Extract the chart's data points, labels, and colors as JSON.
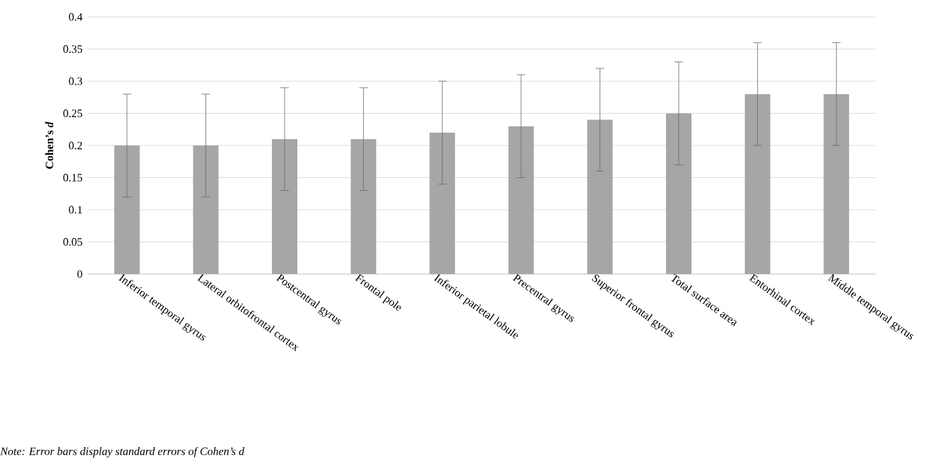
{
  "chart_data": {
    "type": "bar",
    "ylabel": "Cohen’s *d*",
    "categories": [
      "Inferior temporal gyrus",
      "Lateral orbitofrontal cortex",
      "Postcentral gyrus",
      "Frontal pole",
      "Inferior parietal lobule",
      "Precentral gyrus",
      "Superior frontal gyrus",
      "Total surface area",
      "Entorhinal cortex",
      "Middle temporal gyrus"
    ],
    "values": [
      0.2,
      0.2,
      0.21,
      0.21,
      0.22,
      0.23,
      0.24,
      0.25,
      0.28,
      0.28
    ],
    "errors": [
      0.08,
      0.08,
      0.08,
      0.08,
      0.08,
      0.08,
      0.08,
      0.08,
      0.08,
      0.08
    ],
    "color": "#a6a6a6",
    "ylim": [
      0,
      0.4
    ],
    "yticks": [
      0,
      0.05,
      0.1,
      0.15,
      0.2,
      0.25,
      0.3,
      0.35,
      0.4
    ],
    "grid": "y",
    "annotations": [
      "Note: Error bars display standard errors of Cohen’s d"
    ]
  }
}
